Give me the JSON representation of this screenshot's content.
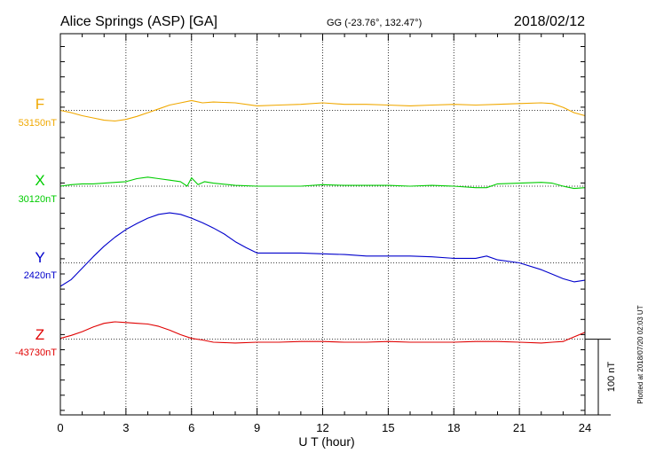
{
  "header": {
    "station": "Alice Springs (ASP)  [GA]",
    "coords": "GG (-23.76°, 132.47°)",
    "date": "2018/02/12"
  },
  "side_note": "Plotted at 2018/07/20 02:03 UT",
  "scale_label": "100 nT",
  "chart_data": {
    "type": "line",
    "xlabel": "U T (hour)",
    "x_ticks": [
      0,
      3,
      6,
      9,
      12,
      15,
      18,
      21,
      24
    ],
    "xlim": [
      0,
      24
    ],
    "grid": true,
    "scale_bar_nT": 100,
    "series": [
      {
        "name": "F",
        "baseline_label": "53150nT",
        "baseline_nT": 53150,
        "color": "#f0a800",
        "x": [
          0,
          0.5,
          1,
          1.5,
          2,
          2.5,
          3,
          3.5,
          4,
          4.5,
          5,
          5.5,
          6,
          6.5,
          7,
          8,
          9,
          10,
          11,
          12,
          13,
          14,
          15,
          16,
          17,
          18,
          19,
          20,
          21,
          22,
          22.5,
          23,
          23.5,
          24
        ],
        "y": [
          53150,
          53147,
          53143,
          53140,
          53137,
          53136,
          53138,
          53142,
          53147,
          53152,
          53157,
          53160,
          53163,
          53160,
          53161,
          53160,
          53156,
          53157,
          53158,
          53160,
          53158,
          53158,
          53157,
          53156,
          53157,
          53158,
          53157,
          53158,
          53159,
          53160,
          53159,
          53154,
          53147,
          53143
        ]
      },
      {
        "name": "X",
        "baseline_label": "30120nT",
        "baseline_nT": 30120,
        "color": "#00cc00",
        "x": [
          0,
          0.5,
          1,
          1.5,
          2,
          2.5,
          3,
          3.5,
          4,
          4.5,
          5,
          5.5,
          5.8,
          6,
          6.3,
          6.6,
          7,
          8,
          9,
          10,
          11,
          12,
          13,
          14,
          15,
          16,
          17,
          18,
          19,
          19.5,
          20,
          21,
          22,
          22.5,
          23,
          23.5,
          24
        ],
        "y": [
          30120,
          30122,
          30123,
          30123,
          30124,
          30125,
          30126,
          30130,
          30132,
          30130,
          30128,
          30126,
          30120,
          30131,
          30122,
          30126,
          30124,
          30121,
          30120,
          30120,
          30120,
          30122,
          30121,
          30121,
          30121,
          30120,
          30121,
          30120,
          30118,
          30118,
          30123,
          30124,
          30125,
          30124,
          30120,
          30117,
          30118
        ]
      },
      {
        "name": "Y",
        "baseline_label": "2420nT",
        "baseline_nT": 2420,
        "color": "#0000cc",
        "x": [
          0,
          0.5,
          1,
          1.5,
          2,
          2.5,
          3,
          3.5,
          4,
          4.5,
          5,
          5.5,
          6,
          6.5,
          7,
          7.5,
          8,
          8.5,
          9,
          10,
          11,
          12,
          13,
          14,
          15,
          16,
          17,
          18,
          19,
          19.5,
          20,
          21,
          22,
          22.5,
          23,
          23.5,
          24
        ],
        "y": [
          2389,
          2398,
          2413,
          2428,
          2442,
          2454,
          2464,
          2472,
          2479,
          2484,
          2486,
          2484,
          2479,
          2473,
          2466,
          2458,
          2448,
          2440,
          2433,
          2433,
          2433,
          2432,
          2431,
          2429,
          2429,
          2429,
          2428,
          2426,
          2426,
          2429,
          2424,
          2420,
          2411,
          2405,
          2399,
          2395,
          2397
        ]
      },
      {
        "name": "Z",
        "baseline_label": "-43730nT",
        "baseline_nT": -43730,
        "color": "#e00000",
        "x": [
          0,
          0.5,
          1,
          1.5,
          2,
          2.5,
          3,
          3.5,
          4,
          4.5,
          5,
          5.5,
          6,
          6.5,
          7,
          8,
          9,
          10,
          11,
          12,
          13,
          14,
          15,
          16,
          17,
          18,
          19,
          20,
          21,
          22,
          22.5,
          23,
          23.5,
          24
        ],
        "y": [
          -43729,
          -43725,
          -43720,
          -43714,
          -43709,
          -43707,
          -43708,
          -43709,
          -43710,
          -43713,
          -43718,
          -43724,
          -43729,
          -43731,
          -43734,
          -43735,
          -43734,
          -43734,
          -43733,
          -43733,
          -43734,
          -43734,
          -43733,
          -43734,
          -43734,
          -43734,
          -43733,
          -43733,
          -43734,
          -43735,
          -43734,
          -43733,
          -43727,
          -43721
        ]
      }
    ]
  }
}
